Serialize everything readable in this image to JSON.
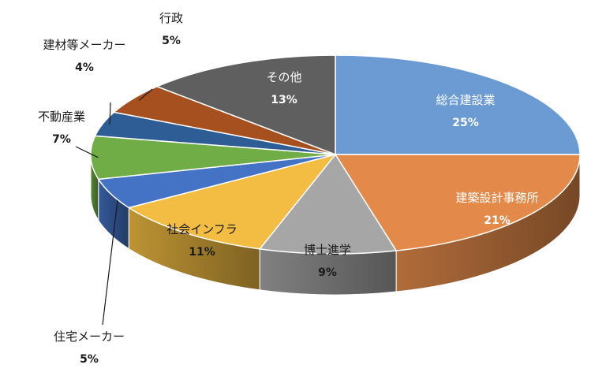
{
  "chart_data": {
    "type": "pie",
    "style": "3d",
    "title": "",
    "slices": [
      {
        "label": "総合建設業",
        "percent_label": "25%",
        "value": 25,
        "color": "#6b9bd2"
      },
      {
        "label": "建築設計事務所",
        "percent_label": "21%",
        "value": 21,
        "color": "#e38a4a"
      },
      {
        "label": "博士進学",
        "percent_label": "9%",
        "value": 9,
        "color": "#a6a6a6"
      },
      {
        "label": "社会インフラ",
        "percent_label": "11%",
        "value": 11,
        "color": "#f2bd42"
      },
      {
        "label": "住宅メーカー",
        "percent_label": "5%",
        "value": 5,
        "color": "#4472c4"
      },
      {
        "label": "不動産業",
        "percent_label": "7%",
        "value": 7,
        "color": "#70ad47"
      },
      {
        "label": "建材等メーカー",
        "percent_label": "4%",
        "value": 4,
        "color": "#2e5d96"
      },
      {
        "label": "行政",
        "percent_label": "5%",
        "value": 5,
        "color": "#a64f1f"
      },
      {
        "label": "その他",
        "percent_label": "13%",
        "value": 13,
        "color": "#5f5f5f"
      }
    ]
  }
}
